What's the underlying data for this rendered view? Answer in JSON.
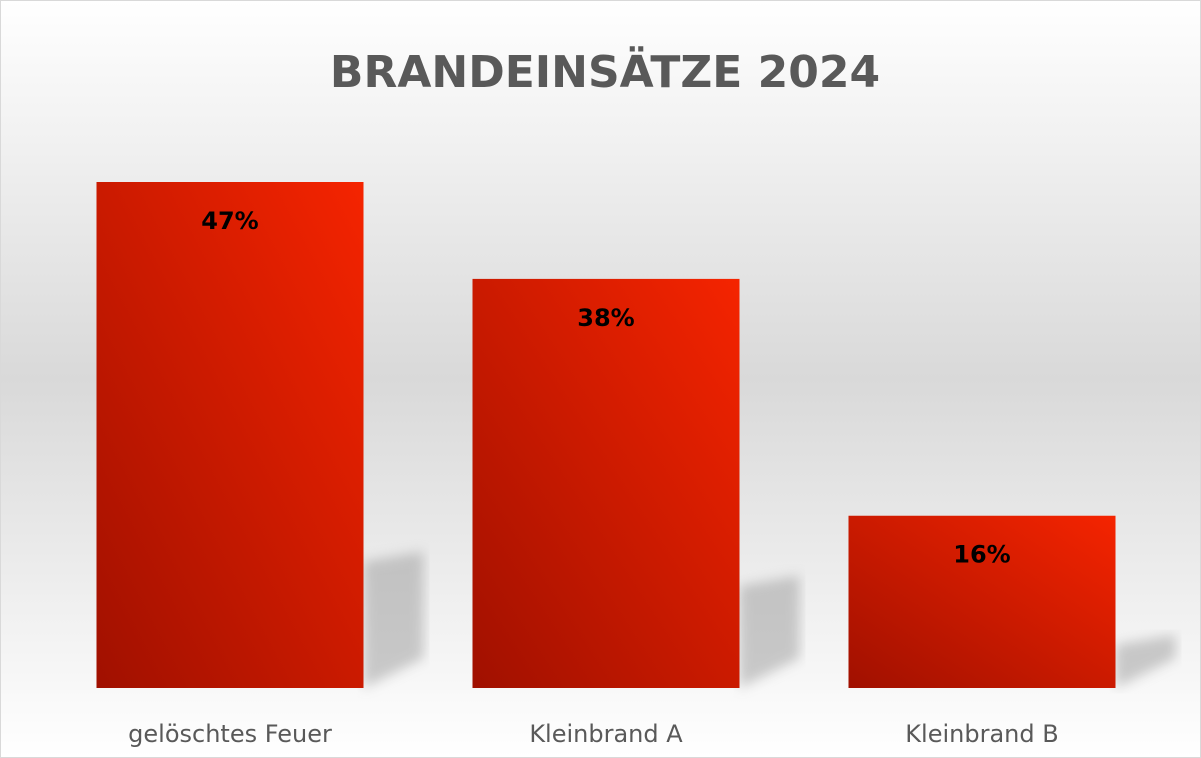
{
  "chart_data": {
    "type": "bar",
    "title": "BRANDEINSÄTZE 2024",
    "categories": [
      "gelöschtes Feuer",
      "Kleinbrand A",
      "Kleinbrand B"
    ],
    "values": [
      47,
      38,
      16
    ],
    "value_labels": [
      "47%",
      "38%",
      "16%"
    ],
    "color": "#f52400"
  }
}
